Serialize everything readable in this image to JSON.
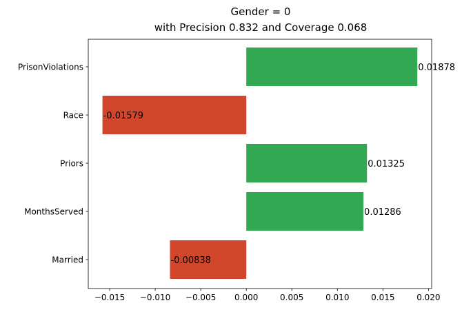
{
  "chart_data": {
    "type": "bar",
    "orientation": "horizontal",
    "title": "Gender = 0",
    "subtitle": "with Precision 0.832 and Coverage 0.068",
    "xlabel": "",
    "ylabel": "",
    "categories": [
      "PrisonViolations",
      "Race",
      "Priors",
      "MonthsServed",
      "Married"
    ],
    "values": [
      0.01878,
      -0.01579,
      0.01325,
      0.01286,
      -0.00838
    ],
    "value_labels": [
      "0.01878",
      "-0.01579",
      "0.01325",
      "0.01286",
      "-0.00838"
    ],
    "xlim": [
      -0.01735,
      0.02035
    ],
    "xticks": [
      -0.015,
      -0.01,
      -0.005,
      0.0,
      0.005,
      0.01,
      0.015,
      0.02
    ],
    "xtick_labels": [
      "−0.015",
      "−0.010",
      "−0.005",
      "0.000",
      "0.005",
      "0.010",
      "0.015",
      "0.020"
    ],
    "grid": false,
    "legend": "none",
    "colors": {
      "positive": "#33a852",
      "negative": "#d2462b"
    }
  }
}
